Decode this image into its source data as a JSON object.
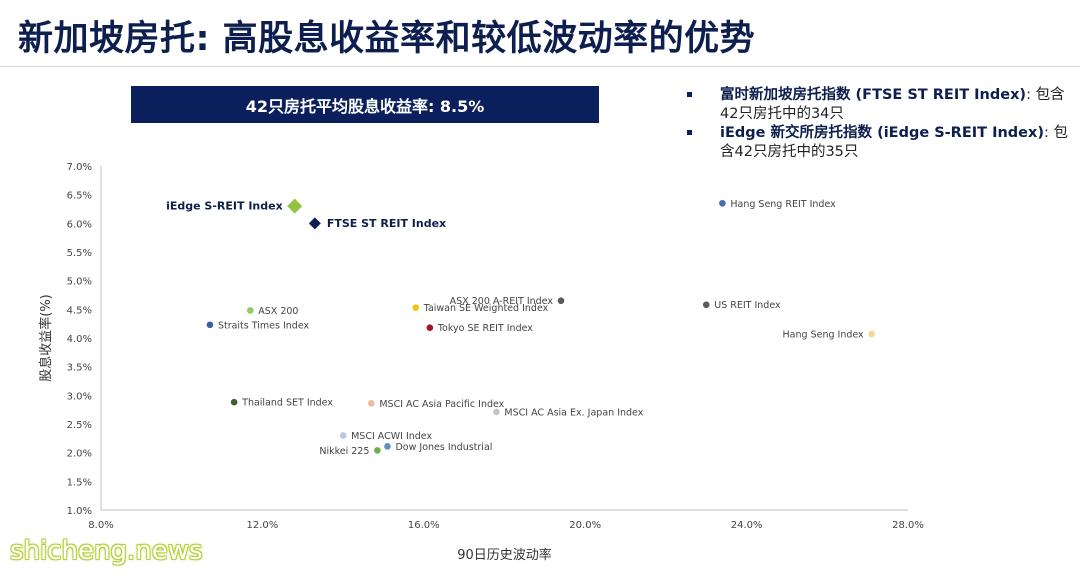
{
  "page": {
    "title": "新加坡房托: 高股息收益率和较低波动率的优势",
    "banner": "42只房托平均股息收益率: 8.5%",
    "notes": [
      {
        "bold": "富时新加坡房托指数 (FTSE ST REIT Index)",
        "text": ": 包含42只房托中的34只"
      },
      {
        "bold": "iEdge 新交所房托指数 (iEdge S-REIT Index)",
        "text": ": 包含42只房托中的35只"
      }
    ],
    "watermark": "shicheng.news"
  },
  "chart_data": {
    "type": "scatter",
    "title": "",
    "xlabel": "90日历史波动率",
    "ylabel": "股息收益率(%)",
    "xlim": [
      8,
      28
    ],
    "ylim": [
      1,
      7
    ],
    "xticks": [
      8,
      12,
      16,
      20,
      24,
      28
    ],
    "xtick_labels": [
      "8.0%",
      "12.0%",
      "16.0%",
      "20.0%",
      "24.0%",
      "28.0%"
    ],
    "yticks": [
      1.0,
      1.5,
      2.0,
      2.5,
      3.0,
      3.5,
      4.0,
      4.5,
      5.0,
      5.5,
      6.0,
      6.5,
      7.0
    ],
    "ytick_labels": [
      "1.0%",
      "1.5%",
      "2.0%",
      "2.5%",
      "3.0%",
      "3.5%",
      "4.0%",
      "4.5%",
      "5.0%",
      "5.5%",
      "6.0%",
      "6.5%",
      "7.0%"
    ],
    "grid": false,
    "points": [
      {
        "label": "iEdge S-REIT Index",
        "x": 12.8,
        "y": 6.3,
        "color": "#8fc340",
        "marker": "diamond-large",
        "bold": true,
        "label_side": "left"
      },
      {
        "label": "FTSE ST REIT Index",
        "x": 13.3,
        "y": 6.0,
        "color": "#0d1f4f",
        "marker": "diamond",
        "bold": true,
        "label_side": "right"
      },
      {
        "label": "Hang Seng REIT Index",
        "x": 23.4,
        "y": 6.35,
        "color": "#4a6ab3",
        "marker": "circle",
        "label_side": "right"
      },
      {
        "label": "ASX 200 A-REIT Index",
        "x": 19.4,
        "y": 4.65,
        "color": "#5b5b5b",
        "marker": "circle",
        "label_side": "left"
      },
      {
        "label": "US REIT Index",
        "x": 23.0,
        "y": 4.58,
        "color": "#5b5b5b",
        "marker": "circle",
        "label_side": "right"
      },
      {
        "label": "Hang Seng Index",
        "x": 27.1,
        "y": 4.07,
        "color": "#f6d79a",
        "marker": "circle",
        "label_side": "left"
      },
      {
        "label": "ASX 200",
        "x": 11.7,
        "y": 4.48,
        "color": "#96c76a",
        "marker": "circle",
        "label_side": "right"
      },
      {
        "label": "Straits Times Index",
        "x": 10.7,
        "y": 4.23,
        "color": "#3a5fa5",
        "marker": "circle",
        "label_side": "right"
      },
      {
        "label": "Taiwan SE Weighted Index",
        "x": 15.8,
        "y": 4.53,
        "color": "#f0c419",
        "marker": "circle",
        "label_side": "right"
      },
      {
        "label": "Tokyo SE REIT Index",
        "x": 16.15,
        "y": 4.18,
        "color": "#9e1233",
        "marker": "circle",
        "label_side": "right"
      },
      {
        "label": "Thailand SET Index",
        "x": 11.3,
        "y": 2.88,
        "color": "#3d5e2e",
        "marker": "circle",
        "label_side": "right"
      },
      {
        "label": "MSCI AC Asia Pacific Index",
        "x": 14.7,
        "y": 2.86,
        "color": "#f3b8a0",
        "marker": "circle",
        "label_side": "right"
      },
      {
        "label": "MSCI AC Asia Ex. Japan Index",
        "x": 17.8,
        "y": 2.71,
        "color": "#c3c3c3",
        "marker": "circle",
        "label_side": "right"
      },
      {
        "label": "MSCI ACWI Index",
        "x": 14.0,
        "y": 2.3,
        "color": "#b9c7e3",
        "marker": "circle",
        "label_side": "right"
      },
      {
        "label": "Dow Jones Industrial",
        "x": 15.1,
        "y": 2.11,
        "color": "#5f8fc0",
        "marker": "circle",
        "label_side": "right"
      },
      {
        "label": "Nikkei 225",
        "x": 14.85,
        "y": 2.04,
        "color": "#6fae47",
        "marker": "circle",
        "label_side": "left"
      }
    ]
  }
}
